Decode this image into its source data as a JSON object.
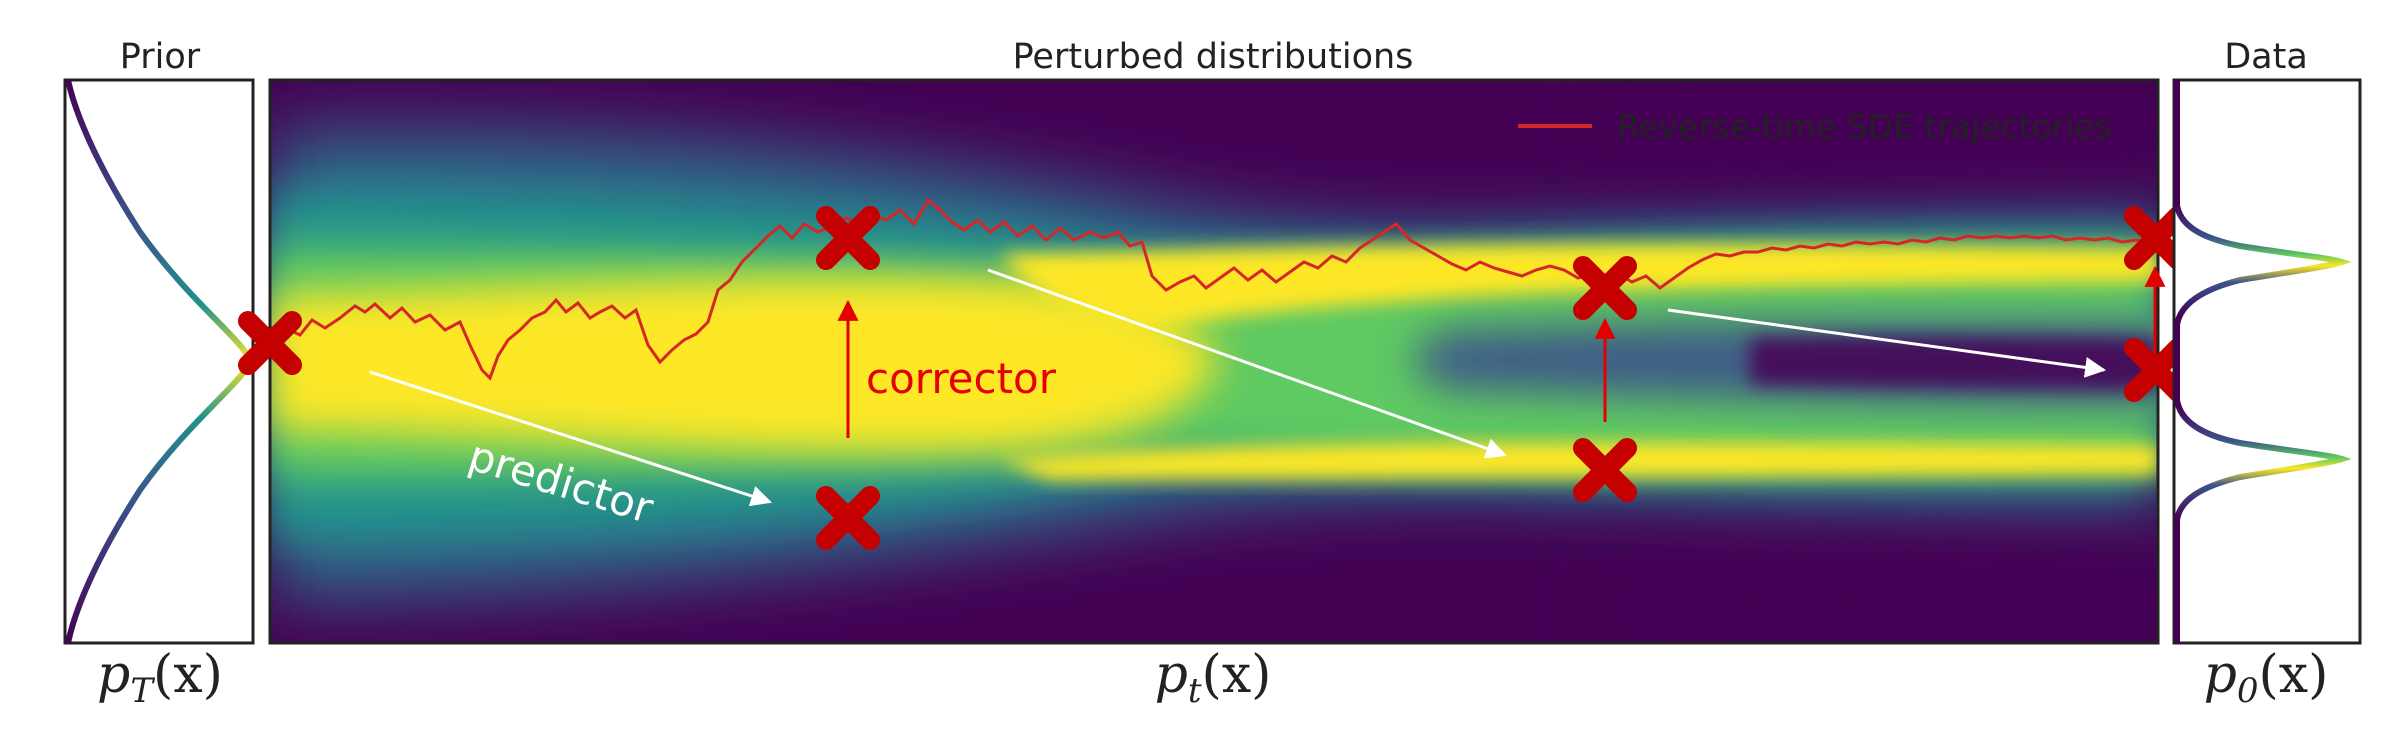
{
  "panels": {
    "prior": {
      "title": "Prior",
      "xlabel_base": "p",
      "xlabel_sub": "T",
      "xlabel_arg": "(x)"
    },
    "perturbed": {
      "title": "Perturbed distributions",
      "xlabel_base": "p",
      "xlabel_sub": "t",
      "xlabel_arg": "(x)"
    },
    "data": {
      "title": "Data",
      "xlabel_base": "p",
      "xlabel_sub": "0",
      "xlabel_arg": "(x)"
    }
  },
  "legend": {
    "entry": "Reverse-time SDE trajectories",
    "line_color": "#d62728"
  },
  "annotations": {
    "predictor": "predictor",
    "corrector": "corrector"
  },
  "colors": {
    "marker": "#c40000",
    "predictor_arrow": "#ffffff",
    "corrector_arrow": "#e40000",
    "frame": "#222222",
    "colormap": "viridis"
  }
}
